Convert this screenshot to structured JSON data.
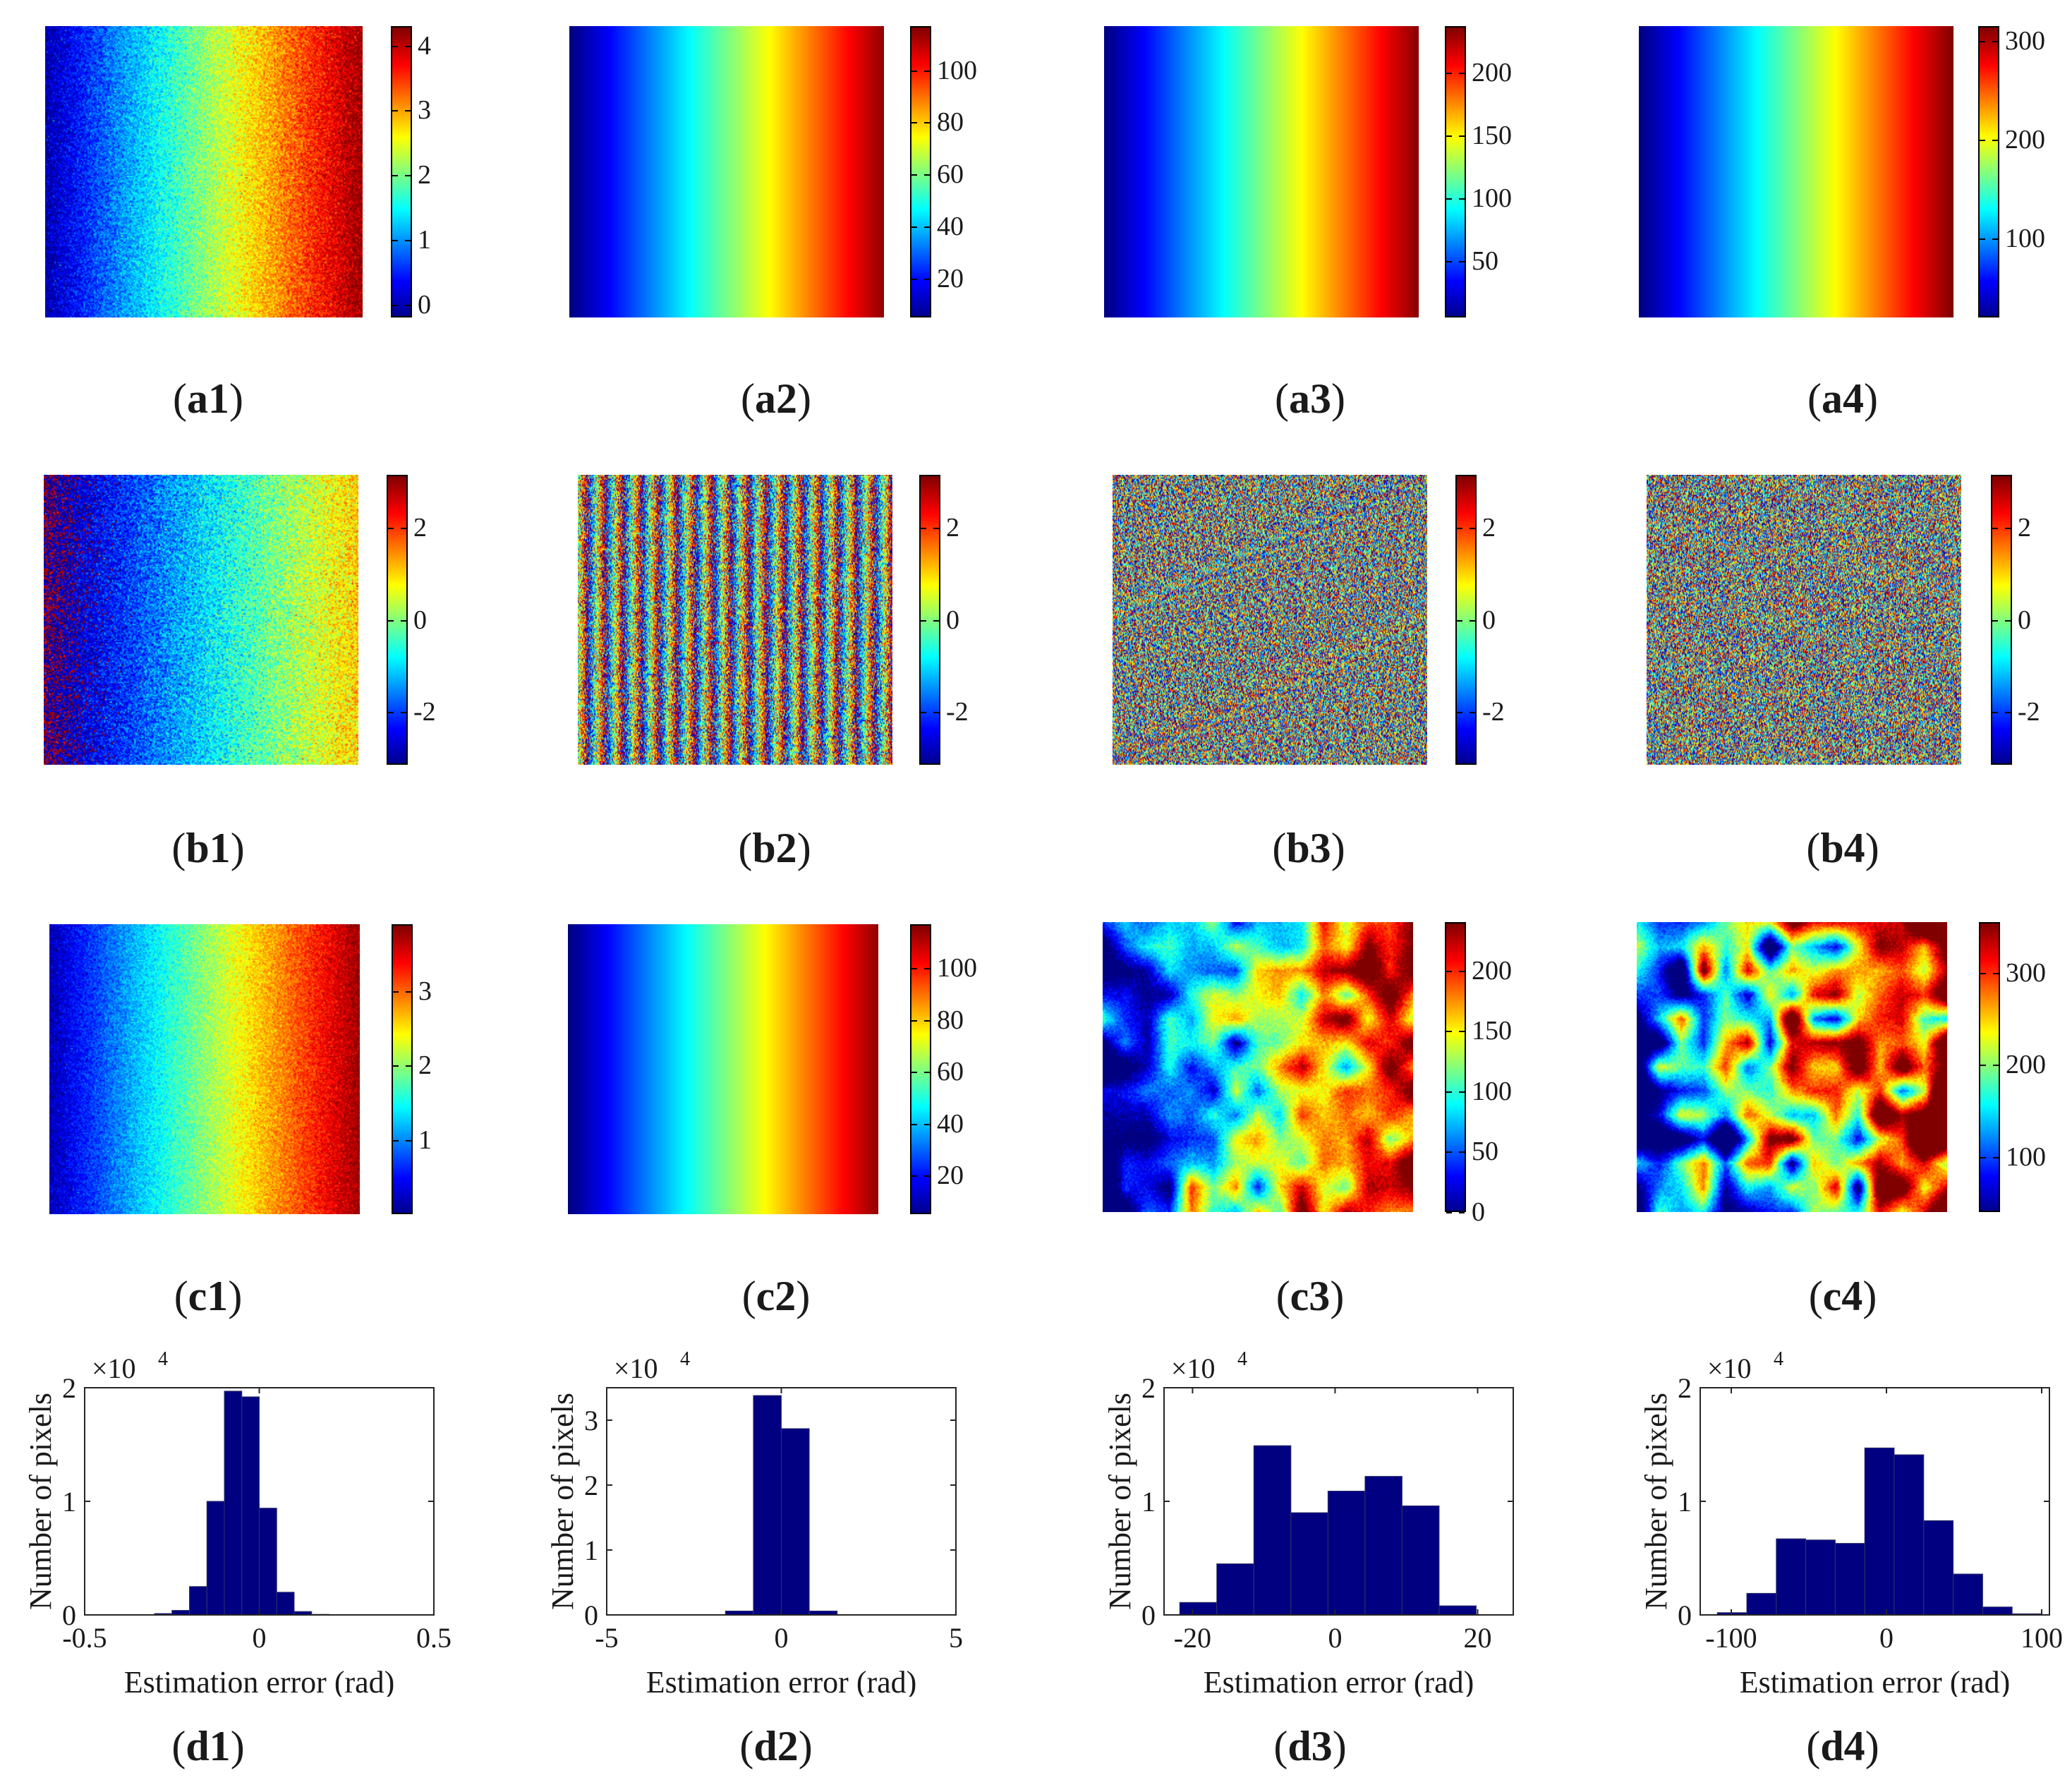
{
  "colormap": {
    "name": "jet",
    "stops": [
      "#00008f",
      "#0000ff",
      "#00ffff",
      "#ffff00",
      "#ff0000",
      "#800000"
    ]
  },
  "histogram_color": "#000080",
  "chart_data": [
    {
      "id": "a1",
      "type": "heatmap",
      "pattern": "ramp",
      "caption_open": "(",
      "caption_label": "a1",
      "caption_close": ")",
      "cmin": -0.2,
      "cmax": 4.3,
      "ticks": [
        {
          "value": 0,
          "label": "0"
        },
        {
          "value": 1,
          "label": "1"
        },
        {
          "value": 2,
          "label": "2"
        },
        {
          "value": 3,
          "label": "3"
        },
        {
          "value": 4,
          "label": "4"
        }
      ],
      "noise": 0.45,
      "range": [
        0,
        4.2
      ]
    },
    {
      "id": "a2",
      "type": "heatmap",
      "pattern": "ramp",
      "caption_open": "(",
      "caption_label": "a2",
      "caption_close": ")",
      "cmin": 5,
      "cmax": 117,
      "ticks": [
        {
          "value": 20,
          "label": "20"
        },
        {
          "value": 40,
          "label": "40"
        },
        {
          "value": 60,
          "label": "60"
        },
        {
          "value": 80,
          "label": "80"
        },
        {
          "value": 100,
          "label": "100"
        }
      ],
      "noise": 0.0,
      "range": [
        5,
        115
      ]
    },
    {
      "id": "a3",
      "type": "heatmap",
      "pattern": "ramp",
      "caption_open": "(",
      "caption_label": "a3",
      "caption_close": ")",
      "cmin": 5,
      "cmax": 237,
      "ticks": [
        {
          "value": 50,
          "label": "50"
        },
        {
          "value": 100,
          "label": "100"
        },
        {
          "value": 150,
          "label": "150"
        },
        {
          "value": 200,
          "label": "200"
        }
      ],
      "noise": 0.0,
      "range": [
        5,
        235
      ]
    },
    {
      "id": "a4",
      "type": "heatmap",
      "pattern": "ramp",
      "caption_open": "(",
      "caption_label": "a4",
      "caption_close": ")",
      "cmin": 20,
      "cmax": 315,
      "ticks": [
        {
          "value": 100,
          "label": "100"
        },
        {
          "value": 200,
          "label": "200"
        },
        {
          "value": 300,
          "label": "300"
        }
      ],
      "noise": 0.0,
      "range": [
        20,
        315
      ]
    },
    {
      "id": "b1",
      "type": "heatmap",
      "pattern": "wrap",
      "caption_open": "(",
      "caption_label": "b1",
      "caption_close": ")",
      "cmin": -3.14,
      "cmax": 3.14,
      "ticks": [
        {
          "value": -2,
          "label": "-2"
        },
        {
          "value": 0,
          "label": "0"
        },
        {
          "value": 2,
          "label": "2"
        }
      ],
      "noise": 0.45,
      "cycles": 0.67,
      "phase0": 0.5
    },
    {
      "id": "b2",
      "type": "heatmap",
      "pattern": "wrap",
      "caption_open": "(",
      "caption_label": "b2",
      "caption_close": ")",
      "cmin": -3.14,
      "cmax": 3.14,
      "ticks": [
        {
          "value": -2,
          "label": "-2"
        },
        {
          "value": 0,
          "label": "0"
        },
        {
          "value": 2,
          "label": "2"
        }
      ],
      "noise": 1.2,
      "cycles": 17.5,
      "phase0": 0
    },
    {
      "id": "b3",
      "type": "heatmap",
      "pattern": "wrap",
      "caption_open": "(",
      "caption_label": "b3",
      "caption_close": ")",
      "cmin": -3.14,
      "cmax": 3.14,
      "ticks": [
        {
          "value": -2,
          "label": "-2"
        },
        {
          "value": 0,
          "label": "0"
        },
        {
          "value": 2,
          "label": "2"
        }
      ],
      "noise": 2.6,
      "cycles": 37,
      "phase0": 0
    },
    {
      "id": "b4",
      "type": "heatmap",
      "pattern": "wrap",
      "caption_open": "(",
      "caption_label": "b4",
      "caption_close": ")",
      "cmin": -3.14,
      "cmax": 3.14,
      "ticks": [
        {
          "value": -2,
          "label": "-2"
        },
        {
          "value": 0,
          "label": "0"
        },
        {
          "value": 2,
          "label": "2"
        }
      ],
      "noise": 3.6,
      "cycles": 50,
      "phase0": 0
    },
    {
      "id": "c1",
      "type": "heatmap",
      "pattern": "ramp",
      "caption_open": "(",
      "caption_label": "c1",
      "caption_close": ")",
      "cmin": 0,
      "cmax": 3.9,
      "ticks": [
        {
          "value": 1,
          "label": "1"
        },
        {
          "value": 2,
          "label": "2"
        },
        {
          "value": 3,
          "label": "3"
        }
      ],
      "noise": 0.35,
      "range": [
        0.2,
        3.8
      ]
    },
    {
      "id": "c2",
      "type": "heatmap",
      "pattern": "ramp",
      "caption_open": "(",
      "caption_label": "c2",
      "caption_close": ")",
      "cmin": 5,
      "cmax": 117,
      "ticks": [
        {
          "value": 20,
          "label": "20"
        },
        {
          "value": 40,
          "label": "40"
        },
        {
          "value": 60,
          "label": "60"
        },
        {
          "value": 80,
          "label": "80"
        },
        {
          "value": 100,
          "label": "100"
        }
      ],
      "noise": 0.0,
      "range": [
        5,
        115
      ]
    },
    {
      "id": "c3",
      "type": "heatmap",
      "pattern": "patchy",
      "caption_open": "(",
      "caption_label": "c3",
      "caption_close": ")",
      "cmin": 0,
      "cmax": 240,
      "ticks": [
        {
          "value": 0,
          "label": "0"
        },
        {
          "value": 50,
          "label": "50"
        },
        {
          "value": 100,
          "label": "100"
        },
        {
          "value": 150,
          "label": "150"
        },
        {
          "value": 200,
          "label": "200"
        }
      ],
      "noise": 0.18,
      "range": [
        10,
        230
      ]
    },
    {
      "id": "c4",
      "type": "heatmap",
      "pattern": "patchy",
      "caption_open": "(",
      "caption_label": "c4",
      "caption_close": ")",
      "cmin": 40,
      "cmax": 355,
      "ticks": [
        {
          "value": 100,
          "label": "100"
        },
        {
          "value": 200,
          "label": "200"
        },
        {
          "value": 300,
          "label": "300"
        }
      ],
      "noise": 0.3,
      "range": [
        60,
        330
      ]
    },
    {
      "id": "d1",
      "type": "bar",
      "caption_open": "(",
      "caption_label": "d1",
      "caption_close": ")",
      "xlabel": "Estimation error (rad)",
      "ylabel": "Number of pixels",
      "scale_label": "×10",
      "scale_exp": "4",
      "xlim": [
        -0.5,
        0.5
      ],
      "ylim": [
        0,
        2
      ],
      "xticks": [
        {
          "value": -0.5,
          "label": "-0.5"
        },
        {
          "value": 0,
          "label": "0"
        },
        {
          "value": 0.5,
          "label": "0.5"
        }
      ],
      "yticks": [
        {
          "value": 0,
          "label": "0"
        },
        {
          "value": 1,
          "label": "1"
        },
        {
          "value": 2,
          "label": "2"
        }
      ],
      "bin_edges": [
        -0.35,
        -0.3,
        -0.25,
        -0.2,
        -0.15,
        -0.1,
        -0.05,
        0,
        0.05,
        0.1,
        0.15,
        0.2,
        0.25,
        0.3,
        0.35
      ],
      "values": [
        0.003,
        0.012,
        0.04,
        0.25,
        1.0,
        1.97,
        1.92,
        0.94,
        0.2,
        0.03,
        0.005,
        0.002,
        0.001,
        0.0
      ]
    },
    {
      "id": "d2",
      "type": "bar",
      "caption_open": "(",
      "caption_label": "d2",
      "caption_close": ")",
      "xlabel": "Estimation error (rad)",
      "ylabel": "Number of pixels",
      "scale_label": "×10",
      "scale_exp": "4",
      "xlim": [
        -5,
        5
      ],
      "ylim": [
        0,
        3.5
      ],
      "xticks": [
        {
          "value": -5,
          "label": "-5"
        },
        {
          "value": 0,
          "label": "0"
        },
        {
          "value": 5,
          "label": "5"
        }
      ],
      "yticks": [
        {
          "value": 0,
          "label": "0"
        },
        {
          "value": 1,
          "label": "1"
        },
        {
          "value": 2,
          "label": "2"
        },
        {
          "value": 3,
          "label": "3"
        }
      ],
      "bin_edges": [
        -1.6,
        -0.8,
        0,
        0.8,
        1.6
      ],
      "values": [
        0.06,
        3.38,
        2.87,
        0.06
      ]
    },
    {
      "id": "d3",
      "type": "bar",
      "caption_open": "(",
      "caption_label": "d3",
      "caption_close": ")",
      "xlabel": "Estimation error (rad)",
      "ylabel": "Number of pixels",
      "scale_label": "×10",
      "scale_exp": "4",
      "xlim": [
        -24,
        25
      ],
      "ylim": [
        0,
        2
      ],
      "xticks": [
        {
          "value": -20,
          "label": "-20"
        },
        {
          "value": 0,
          "label": "0"
        },
        {
          "value": 20,
          "label": "20"
        }
      ],
      "yticks": [
        {
          "value": 0,
          "label": "0"
        },
        {
          "value": 1,
          "label": "1"
        },
        {
          "value": 2,
          "label": "2"
        }
      ],
      "bin_edges": [
        -21.8,
        -16.6,
        -11.4,
        -6.2,
        -1,
        4.2,
        9.4,
        14.6,
        19.8
      ],
      "values": [
        0.11,
        0.45,
        1.49,
        0.9,
        1.09,
        1.22,
        0.96,
        0.08
      ]
    },
    {
      "id": "d4",
      "type": "bar",
      "caption_open": "(",
      "caption_label": "d4",
      "caption_close": ")",
      "xlabel": "Estimation error (rad)",
      "ylabel": "Number of pixels",
      "scale_label": "×10",
      "scale_exp": "4",
      "xlim": [
        -120,
        105
      ],
      "ylim": [
        0,
        2
      ],
      "xticks": [
        {
          "value": -100,
          "label": "-100"
        },
        {
          "value": 0,
          "label": "0"
        },
        {
          "value": 100,
          "label": "100"
        }
      ],
      "yticks": [
        {
          "value": 0,
          "label": "0"
        },
        {
          "value": 1,
          "label": "1"
        },
        {
          "value": 2,
          "label": "2"
        }
      ],
      "bin_edges": [
        -109,
        -90,
        -71,
        -52,
        -33,
        -14,
        5,
        24,
        43,
        62,
        81,
        100
      ],
      "values": [
        0.02,
        0.19,
        0.67,
        0.66,
        0.63,
        1.47,
        1.41,
        0.83,
        0.36,
        0.07,
        0.01
      ]
    }
  ]
}
